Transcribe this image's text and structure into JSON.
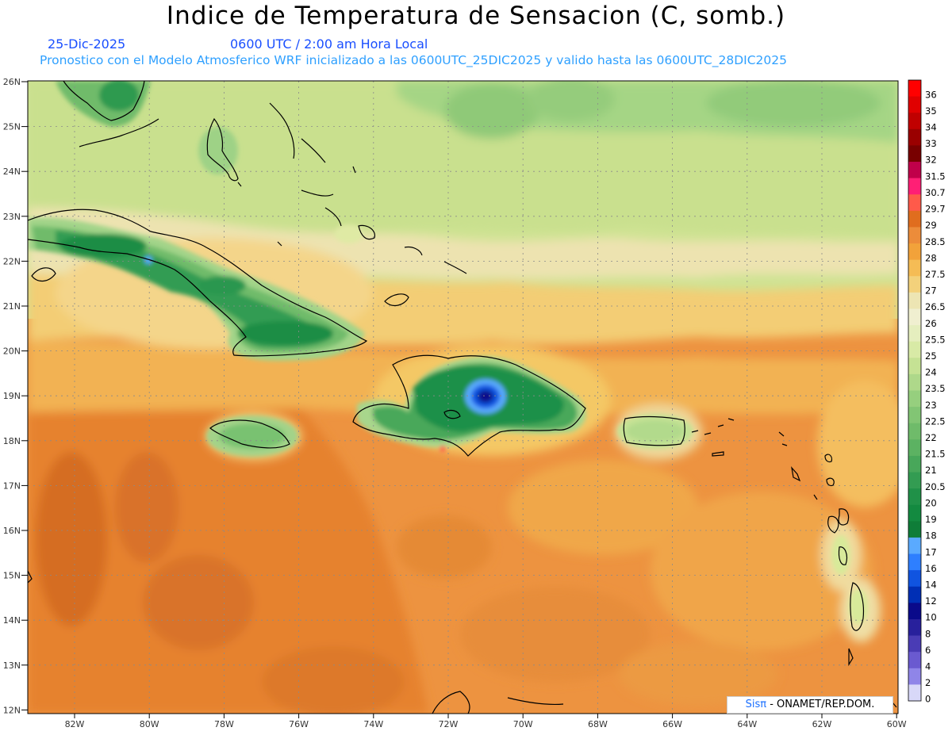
{
  "header": {
    "title": "Indice de Temperatura de Sensacion (C, somb.)",
    "date": "25-Dic-2025",
    "time": "0600 UTC / 2:00 am Hora Local",
    "subtitle": "Pronostico con el Modelo Atmosferico WRF inicializado a las 0600UTC_25DIC2025 y valido hasta las  0600UTC_28DIC2025"
  },
  "map": {
    "lat_labels": [
      "26N",
      "25N",
      "24N",
      "23N",
      "22N",
      "21N",
      "20N",
      "19N",
      "18N",
      "17N",
      "16N",
      "15N",
      "14N",
      "13N",
      "12N"
    ],
    "lon_labels": [
      "82W",
      "80W",
      "78W",
      "76W",
      "74W",
      "72W",
      "70W",
      "68W",
      "66W",
      "64W",
      "62W",
      "60W"
    ],
    "grid": true
  },
  "colorbar": {
    "levels": [
      "36",
      "35",
      "34",
      "33",
      "32",
      "31.5",
      "30.7",
      "29.7",
      "29",
      "28.5",
      "28",
      "27.5",
      "27",
      "26.5",
      "26",
      "25.5",
      "25",
      "24",
      "23.5",
      "23",
      "22.5",
      "22",
      "21.5",
      "21",
      "20.5",
      "20",
      "19",
      "18",
      "17",
      "16",
      "14",
      "12",
      "10",
      "8",
      "6",
      "4",
      "2",
      "0"
    ],
    "colors": [
      "#ff0000",
      "#e00000",
      "#c00000",
      "#9a0000",
      "#780000",
      "#c0004a",
      "#ff1f75",
      "#ff5a4a",
      "#e06d1e",
      "#ec8c3a",
      "#f2a23a",
      "#f5bc55",
      "#f3d17b",
      "#ede5b3",
      "#f0efd0",
      "#e5eebe",
      "#d8eaa6",
      "#c5e294",
      "#aed88a",
      "#96cf7e",
      "#82c574",
      "#6fbb6a",
      "#5cb262",
      "#48a75a",
      "#339c52",
      "#209148",
      "#138a40",
      "#0f7d38",
      "#5aaaff",
      "#2e7fff",
      "#1054e0",
      "#002fb5",
      "#0a0a8a",
      "#28209c",
      "#4a3cb5",
      "#6a5ad0",
      "#8f85e8",
      "#d8d8f8"
    ]
  },
  "credit": {
    "sis": "Sisπ",
    "text": "- ONAMET/REP.DOM."
  }
}
